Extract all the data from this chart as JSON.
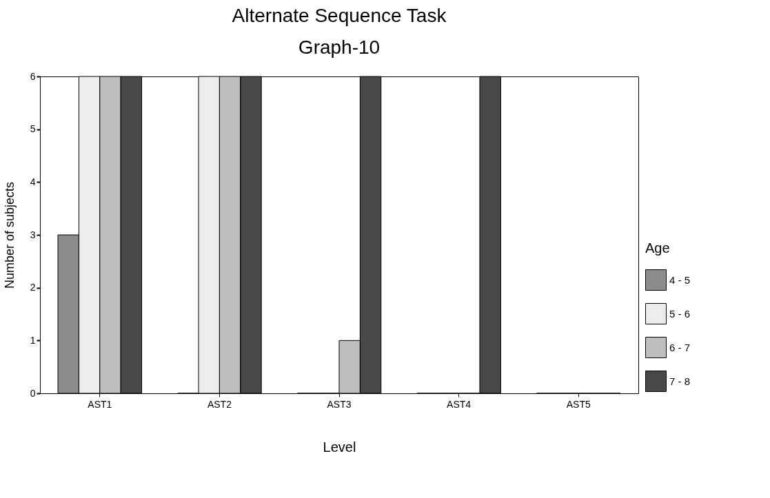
{
  "chart_data": {
    "type": "bar",
    "title": "Alternate Sequence Task",
    "subtitle": "Graph-10",
    "xlabel": "Level",
    "ylabel": "Number of subjects",
    "legend_title": "Age",
    "legend": "right",
    "categories": [
      "AST1",
      "AST2",
      "AST3",
      "AST4",
      "AST5"
    ],
    "series": [
      {
        "name": "4 - 5",
        "color": "#8c8c8c",
        "values": [
          3,
          0,
          0,
          0,
          0
        ]
      },
      {
        "name": "5 - 6",
        "color": "#ececec",
        "values": [
          6,
          6,
          0,
          0,
          0
        ]
      },
      {
        "name": "6 - 7",
        "color": "#bebebe",
        "values": [
          6,
          6,
          1,
          0,
          0
        ]
      },
      {
        "name": "7 - 8",
        "color": "#484848",
        "values": [
          6,
          6,
          6,
          6,
          0
        ]
      }
    ],
    "ylim": [
      0,
      6
    ],
    "yticks": [
      0,
      1,
      2,
      3,
      4,
      5,
      6
    ]
  }
}
